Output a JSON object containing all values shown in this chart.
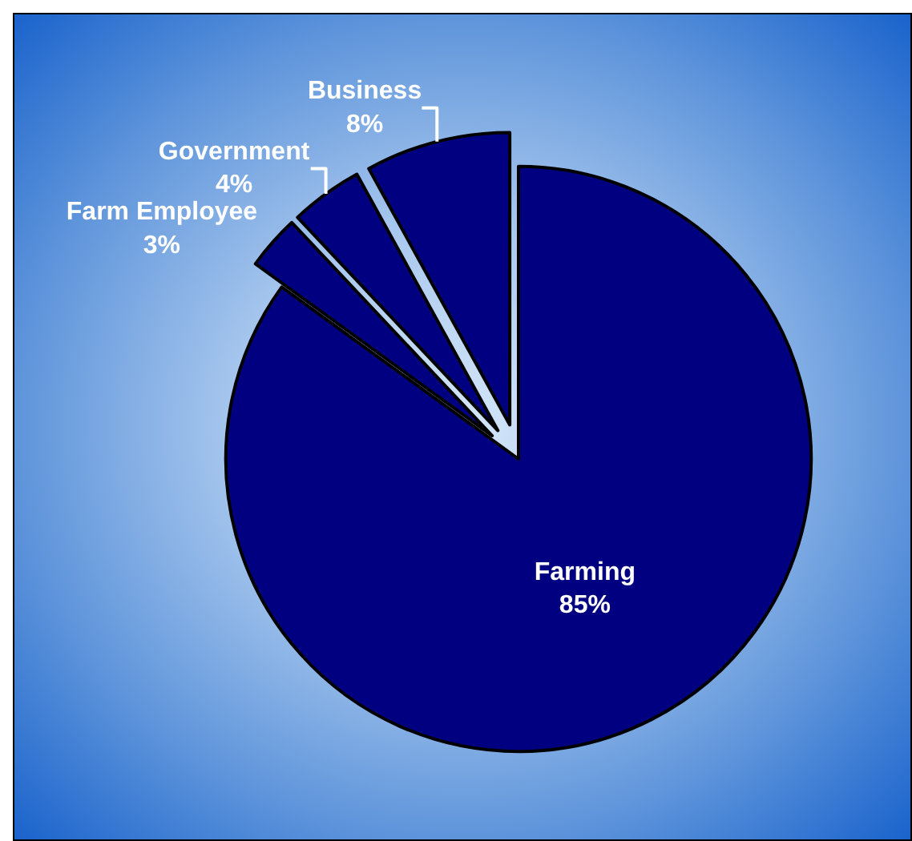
{
  "chart_data": {
    "type": "pie",
    "categories": [
      "Farming",
      "Farm Employee",
      "Government",
      "Business"
    ],
    "values": [
      85,
      3,
      4,
      8
    ],
    "value_labels": [
      "85%",
      "3%",
      "4%",
      "8%"
    ],
    "colors": [
      "#000080",
      "#000080",
      "#000080",
      "#000080"
    ],
    "legend": false
  }
}
